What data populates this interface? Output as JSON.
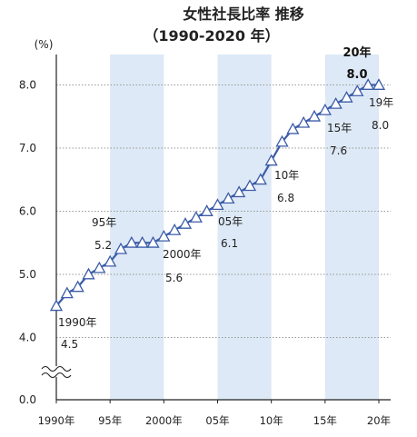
{
  "chart_data": {
    "type": "line",
    "title": "女性社長比率  推移",
    "subtitle": "（1990-2020 年）",
    "ylabel": "(%)",
    "ylim": [
      4.0,
      8.5
    ],
    "y_ticks": [
      "8.0",
      "7.0",
      "6.0",
      "5.0",
      "4.0",
      "0.0"
    ],
    "x_tick_labels": [
      "1990年",
      "95年",
      "2000年",
      "05年",
      "10年",
      "15年",
      "20年"
    ],
    "x": [
      1990,
      1991,
      1992,
      1993,
      1994,
      1995,
      1996,
      1997,
      1998,
      1999,
      2000,
      2001,
      2002,
      2003,
      2004,
      2005,
      2006,
      2007,
      2008,
      2009,
      2010,
      2011,
      2012,
      2013,
      2014,
      2015,
      2016,
      2017,
      2018,
      2019,
      2020
    ],
    "values": [
      4.5,
      4.7,
      4.8,
      5.0,
      5.1,
      5.2,
      5.4,
      5.5,
      5.5,
      5.5,
      5.6,
      5.7,
      5.8,
      5.9,
      6.0,
      6.1,
      6.2,
      6.3,
      6.4,
      6.5,
      6.8,
      7.1,
      7.3,
      7.4,
      7.5,
      7.6,
      7.7,
      7.8,
      7.9,
      8.0,
      8.0
    ],
    "shaded_periods": [
      [
        1995,
        2000
      ],
      [
        2005,
        2010
      ],
      [
        2015,
        2020
      ]
    ],
    "annotations": [
      {
        "year_label": "1990年",
        "value_label": "4.5"
      },
      {
        "year_label": "95年",
        "value_label": "5.2"
      },
      {
        "year_label": "2000年",
        "value_label": "5.6"
      },
      {
        "year_label": "05年",
        "value_label": "6.1"
      },
      {
        "year_label": "10年",
        "value_label": "6.8"
      },
      {
        "year_label": "15年",
        "value_label": "7.6"
      },
      {
        "year_label": "19年",
        "value_label": "8.0"
      },
      {
        "year_label": "20年",
        "value_label": "8.0",
        "emphasis": true
      }
    ],
    "axis_break": true,
    "grid": "horizontal dotted",
    "colors": {
      "line": "#3c5ca8",
      "marker_fill": "#ffffff",
      "marker_stroke": "#3c5ca8",
      "shade": "#dde9f6",
      "grid": "#999999",
      "axis": "#222222"
    }
  }
}
